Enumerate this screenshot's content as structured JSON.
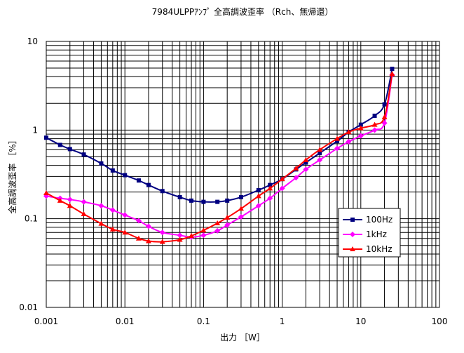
{
  "chart_data": {
    "type": "line",
    "title": "7984ULPPｱﾝﾌﾟ 全高調波歪率 （Rch、無帰還）",
    "xlabel": "出力 ［W］",
    "ylabel": "全高調波歪率 ［%］",
    "x_scale": "log",
    "y_scale": "log",
    "xlim": [
      0.001,
      100
    ],
    "ylim": [
      0.01,
      10
    ],
    "x_tick_labels": [
      "0.001",
      "0.01",
      "0.1",
      "1",
      "10",
      "100"
    ],
    "y_tick_labels": [
      "10",
      "1",
      "0.1",
      "0.01"
    ],
    "grid": true,
    "legend_position": "right",
    "series": [
      {
        "name": "100Hz",
        "color": "#000080",
        "marker": "square",
        "x": [
          0.001,
          0.0015,
          0.002,
          0.003,
          0.005,
          0.007,
          0.01,
          0.015,
          0.02,
          0.03,
          0.05,
          0.07,
          0.1,
          0.15,
          0.2,
          0.3,
          0.5,
          0.7,
          1,
          1.5,
          2,
          3,
          5,
          7,
          10,
          15,
          20,
          25
        ],
        "y": [
          0.82,
          0.68,
          0.61,
          0.53,
          0.42,
          0.35,
          0.31,
          0.27,
          0.24,
          0.205,
          0.175,
          0.16,
          0.155,
          0.155,
          0.16,
          0.175,
          0.21,
          0.24,
          0.28,
          0.36,
          0.43,
          0.55,
          0.75,
          0.95,
          1.15,
          1.45,
          1.95,
          4.9
        ]
      },
      {
        "name": "1kHz",
        "color": "#ff00ff",
        "marker": "diamond",
        "x": [
          0.001,
          0.0015,
          0.002,
          0.003,
          0.005,
          0.007,
          0.01,
          0.015,
          0.02,
          0.03,
          0.05,
          0.07,
          0.1,
          0.15,
          0.2,
          0.3,
          0.5,
          0.7,
          1,
          1.5,
          2,
          3,
          5,
          7,
          10,
          15,
          20,
          25
        ],
        "y": [
          0.18,
          0.17,
          0.165,
          0.155,
          0.14,
          0.125,
          0.11,
          0.095,
          0.082,
          0.07,
          0.065,
          0.062,
          0.065,
          0.073,
          0.085,
          0.105,
          0.14,
          0.17,
          0.22,
          0.29,
          0.36,
          0.46,
          0.62,
          0.74,
          0.86,
          1.0,
          1.2,
          4.2
        ]
      },
      {
        "name": "10kHz",
        "color": "#ff0000",
        "marker": "triangle",
        "x": [
          0.001,
          0.0015,
          0.002,
          0.003,
          0.005,
          0.007,
          0.01,
          0.015,
          0.02,
          0.03,
          0.05,
          0.07,
          0.1,
          0.15,
          0.2,
          0.3,
          0.5,
          0.7,
          1,
          1.5,
          2,
          3,
          5,
          7,
          10,
          15,
          20,
          25
        ],
        "y": [
          0.195,
          0.16,
          0.14,
          0.113,
          0.088,
          0.076,
          0.07,
          0.06,
          0.056,
          0.055,
          0.058,
          0.064,
          0.074,
          0.089,
          0.103,
          0.13,
          0.18,
          0.22,
          0.28,
          0.37,
          0.46,
          0.6,
          0.8,
          0.95,
          1.05,
          1.15,
          1.4,
          4.3
        ]
      }
    ]
  }
}
